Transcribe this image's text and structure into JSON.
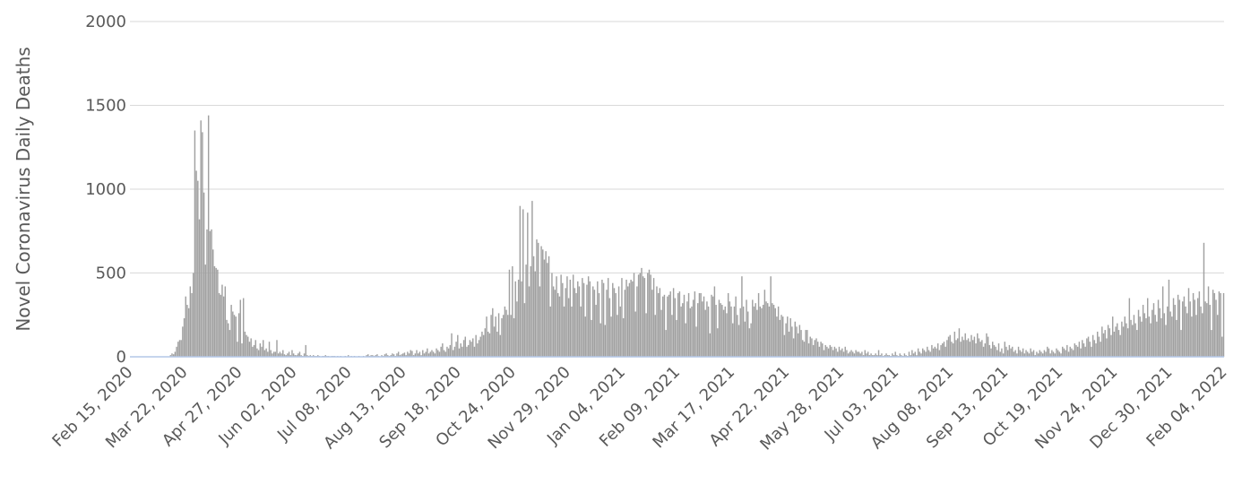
{
  "chart_data": {
    "type": "bar",
    "y_label": "Novel Coronavirus Daily Deaths",
    "color": "#a0a0a0",
    "axis_color": "#b4c7e7",
    "grid": true,
    "ylim": [
      0,
      2000
    ],
    "yticks": [
      0,
      500,
      1000,
      1500,
      2000
    ],
    "categories": [
      "Feb 15, 2020",
      null,
      null,
      null,
      null,
      null,
      null,
      null,
      null,
      null,
      null,
      null,
      null,
      null,
      null,
      null,
      null,
      null,
      null,
      null,
      null,
      null,
      null,
      null,
      null,
      null,
      null,
      null,
      null,
      null,
      null,
      null,
      null,
      null,
      null,
      null,
      "Mar 22, 2020",
      null,
      null,
      null,
      null,
      null,
      null,
      null,
      null,
      null,
      null,
      null,
      null,
      null,
      null,
      null,
      null,
      null,
      null,
      null,
      null,
      null,
      null,
      null,
      null,
      null,
      null,
      null,
      null,
      null,
      null,
      null,
      null,
      null,
      null,
      null,
      "Apr 27, 2020",
      null,
      null,
      null,
      null,
      null,
      null,
      null,
      null,
      null,
      null,
      null,
      null,
      null,
      null,
      null,
      null,
      null,
      null,
      null,
      null,
      null,
      null,
      null,
      null,
      null,
      null,
      null,
      null,
      null,
      null,
      null,
      null,
      null,
      null,
      null,
      "Jun 02, 2020",
      null,
      null,
      null,
      null,
      null,
      null,
      null,
      null,
      null,
      null,
      null,
      null,
      null,
      null,
      null,
      null,
      null,
      null,
      null,
      null,
      null,
      null,
      null,
      null,
      null,
      null,
      null,
      null,
      null,
      null,
      null,
      null,
      null,
      null,
      null,
      "Jul 08, 2020",
      null,
      null,
      null,
      null,
      null,
      null,
      null,
      null,
      null,
      null,
      null,
      null,
      null,
      null,
      null,
      null,
      null,
      null,
      null,
      null,
      null,
      null,
      null,
      null,
      null,
      null,
      null,
      null,
      null,
      null,
      null,
      null,
      null,
      null,
      null,
      "Aug 13, 2020",
      null,
      null,
      null,
      null,
      null,
      null,
      null,
      null,
      null,
      null,
      null,
      null,
      null,
      null,
      null,
      null,
      null,
      null,
      null,
      null,
      null,
      null,
      null,
      null,
      null,
      null,
      null,
      null,
      null,
      null,
      null,
      null,
      null,
      null,
      null,
      "Sep 18, 2020",
      null,
      null,
      null,
      null,
      null,
      null,
      null,
      null,
      null,
      null,
      null,
      null,
      null,
      null,
      null,
      null,
      null,
      null,
      null,
      null,
      null,
      null,
      null,
      null,
      null,
      null,
      null,
      null,
      null,
      null,
      null,
      null,
      null,
      null,
      null,
      "Oct 24, 2020",
      null,
      null,
      null,
      null,
      null,
      null,
      null,
      null,
      null,
      null,
      null,
      null,
      null,
      null,
      null,
      null,
      null,
      null,
      null,
      null,
      null,
      null,
      null,
      null,
      null,
      null,
      null,
      null,
      null,
      null,
      null,
      null,
      null,
      null,
      null,
      "Nov 29, 2020",
      null,
      null,
      null,
      null,
      null,
      null,
      null,
      null,
      null,
      null,
      null,
      null,
      null,
      null,
      null,
      null,
      null,
      null,
      null,
      null,
      null,
      null,
      null,
      null,
      null,
      null,
      null,
      null,
      null,
      null,
      null,
      null,
      null,
      null,
      null,
      "Jan 04, 2021",
      null,
      null,
      null,
      null,
      null,
      null,
      null,
      null,
      null,
      null,
      null,
      null,
      null,
      null,
      null,
      null,
      null,
      null,
      null,
      null,
      null,
      null,
      null,
      null,
      null,
      null,
      null,
      null,
      null,
      null,
      null,
      null,
      null,
      null,
      null,
      "Feb 09, 2021",
      null,
      null,
      null,
      null,
      null,
      null,
      null,
      null,
      null,
      null,
      null,
      null,
      null,
      null,
      null,
      null,
      null,
      null,
      null,
      null,
      null,
      null,
      null,
      null,
      null,
      null,
      null,
      null,
      null,
      null,
      null,
      null,
      null,
      null,
      null,
      "Mar 17, 2021",
      null,
      null,
      null,
      null,
      null,
      null,
      null,
      null,
      null,
      null,
      null,
      null,
      null,
      null,
      null,
      null,
      null,
      null,
      null,
      null,
      null,
      null,
      null,
      null,
      null,
      null,
      null,
      null,
      null,
      null,
      null,
      null,
      null,
      null,
      null,
      "Apr 22, 2021",
      null,
      null,
      null,
      null,
      null,
      null,
      null,
      null,
      null,
      null,
      null,
      null,
      null,
      null,
      null,
      null,
      null,
      null,
      null,
      null,
      null,
      null,
      null,
      null,
      null,
      null,
      null,
      null,
      null,
      null,
      null,
      null,
      null,
      null,
      null,
      "May 28, 2021",
      null,
      null,
      null,
      null,
      null,
      null,
      null,
      null,
      null,
      null,
      null,
      null,
      null,
      null,
      null,
      null,
      null,
      null,
      null,
      null,
      null,
      null,
      null,
      null,
      null,
      null,
      null,
      null,
      null,
      null,
      null,
      null,
      null,
      null,
      null,
      "Jul 03, 2021",
      null,
      null,
      null,
      null,
      null,
      null,
      null,
      null,
      null,
      null,
      null,
      null,
      null,
      null,
      null,
      null,
      null,
      null,
      null,
      null,
      null,
      null,
      null,
      null,
      null,
      null,
      null,
      null,
      null,
      null,
      null,
      null,
      null,
      null,
      null,
      "Aug 08, 2021",
      null,
      null,
      null,
      null,
      null,
      null,
      null,
      null,
      null,
      null,
      null,
      null,
      null,
      null,
      null,
      null,
      null,
      null,
      null,
      null,
      null,
      null,
      null,
      null,
      null,
      null,
      null,
      null,
      null,
      null,
      null,
      null,
      null,
      null,
      null,
      "Sep 13, 2021",
      null,
      null,
      null,
      null,
      null,
      null,
      null,
      null,
      null,
      null,
      null,
      null,
      null,
      null,
      null,
      null,
      null,
      null,
      null,
      null,
      null,
      null,
      null,
      null,
      null,
      null,
      null,
      null,
      null,
      null,
      null,
      null,
      null,
      null,
      null,
      "Oct 19, 2021",
      null,
      null,
      null,
      null,
      null,
      null,
      null,
      null,
      null,
      null,
      null,
      null,
      null,
      null,
      null,
      null,
      null,
      null,
      null,
      null,
      null,
      null,
      null,
      null,
      null,
      null,
      null,
      null,
      null,
      null,
      null,
      null,
      null,
      null,
      null,
      "Nov 24, 2021",
      null,
      null,
      null,
      null,
      null,
      null,
      null,
      null,
      null,
      null,
      null,
      null,
      null,
      null,
      null,
      null,
      null,
      null,
      null,
      null,
      null,
      null,
      null,
      null,
      null,
      null,
      null,
      null,
      null,
      null,
      null,
      null,
      null,
      null,
      null,
      "Dec 30, 2021",
      null,
      null,
      null,
      null,
      null,
      null,
      null,
      null,
      null,
      null,
      null,
      null,
      null,
      null,
      null,
      null,
      null,
      null,
      null,
      null,
      null,
      null,
      null,
      null,
      null,
      null,
      null,
      null,
      null,
      null,
      null,
      null,
      null,
      null,
      null,
      "Feb 04, 2022"
    ],
    "values": [
      0,
      0,
      0,
      0,
      0,
      0,
      0,
      0,
      0,
      0,
      0,
      0,
      0,
      0,
      0,
      0,
      0,
      0,
      0,
      0,
      0,
      0,
      0,
      0,
      0,
      0,
      2,
      10,
      20,
      15,
      30,
      60,
      90,
      100,
      100,
      180,
      230,
      360,
      310,
      290,
      420,
      380,
      500,
      1350,
      1110,
      1050,
      820,
      1410,
      1340,
      980,
      550,
      760,
      1440,
      750,
      760,
      640,
      540,
      530,
      520,
      380,
      370,
      430,
      360,
      420,
      220,
      200,
      160,
      310,
      270,
      250,
      240,
      90,
      260,
      340,
      80,
      350,
      150,
      130,
      120,
      90,
      110,
      60,
      70,
      100,
      50,
      40,
      80,
      60,
      100,
      40,
      50,
      30,
      90,
      40,
      20,
      30,
      30,
      100,
      20,
      30,
      20,
      40,
      15,
      10,
      20,
      30,
      10,
      40,
      20,
      10,
      10,
      20,
      30,
      10,
      5,
      20,
      70,
      10,
      5,
      10,
      5,
      10,
      5,
      5,
      10,
      5,
      0,
      5,
      5,
      10,
      5,
      5,
      0,
      5,
      5,
      5,
      0,
      5,
      0,
      5,
      0,
      0,
      5,
      0,
      10,
      0,
      5,
      0,
      5,
      0,
      0,
      5,
      0,
      0,
      5,
      0,
      10,
      15,
      5,
      10,
      10,
      5,
      10,
      15,
      5,
      0,
      10,
      5,
      15,
      20,
      10,
      5,
      10,
      20,
      15,
      5,
      20,
      30,
      10,
      15,
      20,
      25,
      10,
      30,
      20,
      40,
      35,
      10,
      20,
      40,
      20,
      30,
      10,
      40,
      20,
      30,
      50,
      20,
      30,
      40,
      30,
      20,
      50,
      40,
      30,
      60,
      80,
      40,
      30,
      60,
      50,
      70,
      140,
      40,
      60,
      90,
      130,
      50,
      80,
      60,
      100,
      120,
      60,
      70,
      100,
      90,
      110,
      60,
      130,
      80,
      100,
      120,
      150,
      130,
      170,
      240,
      150,
      140,
      250,
      290,
      180,
      240,
      150,
      260,
      130,
      230,
      250,
      300,
      280,
      250,
      520,
      250,
      540,
      230,
      450,
      330,
      460,
      900,
      450,
      880,
      320,
      550,
      860,
      420,
      540,
      930,
      600,
      510,
      700,
      680,
      420,
      660,
      640,
      580,
      630,
      560,
      600,
      300,
      500,
      420,
      400,
      480,
      380,
      360,
      490,
      440,
      300,
      410,
      480,
      350,
      460,
      300,
      490,
      410,
      380,
      450,
      420,
      300,
      470,
      440,
      240,
      430,
      480,
      450,
      220,
      420,
      400,
      310,
      450,
      380,
      200,
      460,
      440,
      190,
      400,
      470,
      350,
      240,
      440,
      410,
      380,
      250,
      420,
      300,
      470,
      230,
      400,
      460,
      420,
      440,
      460,
      450,
      500,
      270,
      420,
      490,
      500,
      530,
      480,
      470,
      260,
      500,
      520,
      490,
      400,
      470,
      250,
      420,
      380,
      410,
      280,
      360,
      370,
      160,
      360,
      370,
      390,
      250,
      410,
      350,
      220,
      380,
      390,
      300,
      320,
      370,
      200,
      330,
      380,
      290,
      300,
      340,
      390,
      180,
      320,
      380,
      380,
      330,
      360,
      280,
      330,
      300,
      140,
      370,
      360,
      420,
      310,
      170,
      340,
      320,
      310,
      280,
      300,
      260,
      380,
      330,
      300,
      200,
      300,
      360,
      250,
      190,
      290,
      480,
      300,
      210,
      340,
      270,
      170,
      200,
      340,
      300,
      320,
      280,
      380,
      300,
      290,
      310,
      400,
      330,
      320,
      300,
      480,
      320,
      310,
      290,
      240,
      300,
      220,
      250,
      240,
      130,
      200,
      240,
      150,
      230,
      180,
      110,
      210,
      180,
      140,
      190,
      160,
      100,
      90,
      160,
      160,
      80,
      120,
      110,
      70,
      100,
      110,
      90,
      60,
      90,
      80,
      40,
      70,
      60,
      50,
      70,
      60,
      40,
      60,
      50,
      30,
      60,
      40,
      50,
      30,
      60,
      40,
      20,
      30,
      40,
      30,
      20,
      40,
      30,
      30,
      20,
      30,
      10,
      40,
      20,
      30,
      10,
      20,
      10,
      10,
      20,
      10,
      40,
      10,
      20,
      5,
      10,
      20,
      10,
      10,
      5,
      20,
      10,
      30,
      10,
      5,
      20,
      10,
      5,
      20,
      10,
      5,
      30,
      10,
      40,
      20,
      30,
      10,
      50,
      30,
      20,
      50,
      40,
      30,
      60,
      40,
      30,
      70,
      50,
      60,
      50,
      80,
      40,
      70,
      80,
      90,
      60,
      100,
      120,
      130,
      90,
      80,
      150,
      100,
      110,
      170,
      90,
      120,
      100,
      140,
      100,
      110,
      90,
      130,
      100,
      120,
      80,
      140,
      110,
      90,
      100,
      60,
      80,
      140,
      120,
      70,
      50,
      90,
      70,
      60,
      40,
      80,
      30,
      50,
      20,
      90,
      60,
      40,
      70,
      50,
      60,
      30,
      40,
      20,
      60,
      40,
      30,
      50,
      20,
      40,
      30,
      20,
      50,
      30,
      40,
      10,
      30,
      20,
      40,
      30,
      20,
      40,
      30,
      60,
      50,
      20,
      40,
      30,
      20,
      50,
      40,
      30,
      20,
      60,
      50,
      40,
      70,
      30,
      60,
      50,
      40,
      80,
      70,
      60,
      90,
      50,
      100,
      80,
      60,
      110,
      120,
      90,
      60,
      130,
      100,
      80,
      150,
      120,
      90,
      180,
      140,
      160,
      110,
      190,
      170,
      130,
      240,
      150,
      180,
      200,
      160,
      130,
      210,
      180,
      240,
      200,
      170,
      350,
      220,
      190,
      250,
      200,
      160,
      280,
      240,
      210,
      310,
      260,
      230,
      350,
      240,
      200,
      280,
      320,
      250,
      210,
      340,
      290,
      230,
      420,
      260,
      190,
      300,
      460,
      270,
      240,
      350,
      310,
      220,
      370,
      340,
      160,
      330,
      360,
      300,
      260,
      410,
      330,
      240,
      380,
      340,
      250,
      350,
      390,
      300,
      260,
      680,
      330,
      320,
      420,
      310,
      160,
      400,
      380,
      340,
      250,
      390,
      380,
      120,
      380
    ]
  }
}
